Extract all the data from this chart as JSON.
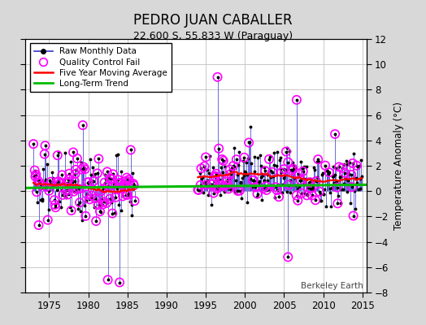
{
  "title": "PEDRO JUAN CABALLER",
  "subtitle": "22.600 S, 55.833 W (Paraguay)",
  "ylabel": "Temperature Anomaly (°C)",
  "watermark": "Berkeley Earth",
  "xlim": [
    1972.0,
    2015.5
  ],
  "ylim": [
    -8,
    12
  ],
  "yticks": [
    -8,
    -6,
    -4,
    -2,
    0,
    2,
    4,
    6,
    8,
    10,
    12
  ],
  "xticks": [
    1975,
    1980,
    1985,
    1990,
    1995,
    2000,
    2005,
    2010,
    2015
  ],
  "background_color": "#d8d8d8",
  "plot_bg_color": "#ffffff",
  "raw_line_color": "#3333cc",
  "raw_marker_color": "#000000",
  "qc_fail_color": "#ff00ff",
  "moving_avg_color": "#ff0000",
  "trend_color": "#00bb00"
}
